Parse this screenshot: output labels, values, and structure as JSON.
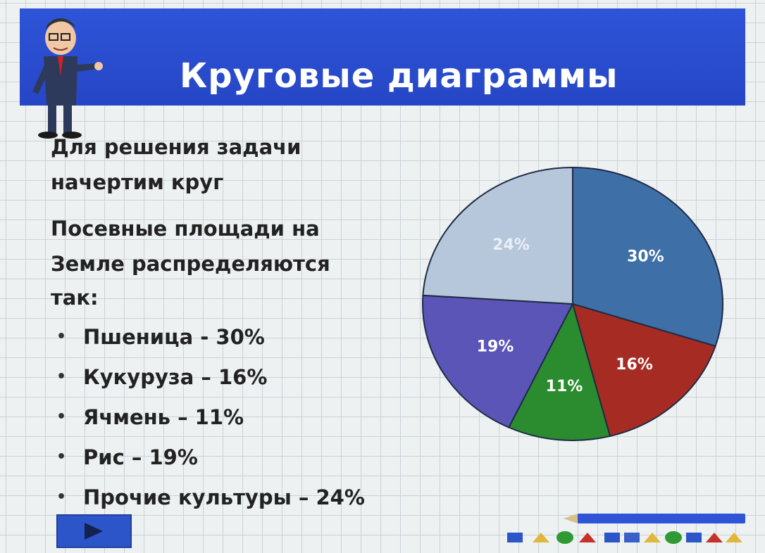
{
  "slide": {
    "title": "Круговые диаграммы",
    "intro": [
      "Для решения задачи",
      "начертим круг",
      "Посевные площади на",
      "Земле распределяются",
      "так:"
    ],
    "bullets": [
      "Пшеница - 30%",
      "Кукуруза – 16%",
      "Ячмень – 11%",
      "Рис – 19%",
      "Прочие культуры – 24%"
    ]
  },
  "colors": {
    "title_bar": "#2f54d8",
    "grid": "#c9d2d6"
  },
  "icons": {
    "mascot": "cartoon-man-pointing-icon",
    "nav": "play-triangle-icon",
    "pencil": "pencil-icon"
  },
  "chart_data": {
    "type": "pie",
    "start_angle_deg": 0,
    "direction": "clockwise",
    "slices": [
      {
        "label": "30%",
        "value": 30,
        "color": "#3f6fa7",
        "label_color": "#ffffff"
      },
      {
        "label": "16%",
        "value": 16,
        "color": "#a62c23",
        "label_color": "#ffffff"
      },
      {
        "label": "11%",
        "value": 11,
        "color": "#2a8c2f",
        "label_color": "#ffffff"
      },
      {
        "label": "19%",
        "value": 19,
        "color": "#5a55b6",
        "label_color": "#ffffff"
      },
      {
        "label": "24%",
        "value": 24,
        "color": "#b6c7db",
        "label_color": "#e9eff6"
      }
    ]
  }
}
